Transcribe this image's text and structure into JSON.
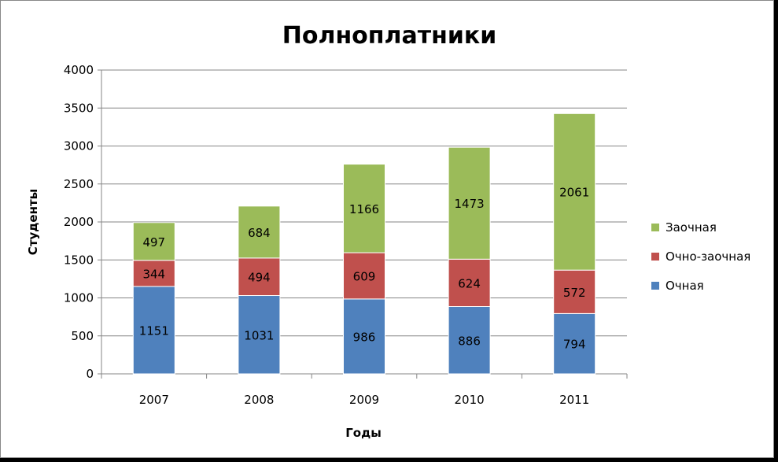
{
  "chart_data": {
    "type": "bar",
    "stacked": true,
    "title": "Полноплатники",
    "xlabel": "Годы",
    "ylabel": "Студенты",
    "categories": [
      "2007",
      "2008",
      "2009",
      "2010",
      "2011"
    ],
    "series": [
      {
        "name": "Очная",
        "color": "#4f81bd",
        "values": [
          1151,
          1031,
          986,
          886,
          794
        ]
      },
      {
        "name": "Очно-заочная",
        "color": "#c0504d",
        "values": [
          344,
          494,
          609,
          624,
          572
        ]
      },
      {
        "name": "Заочная",
        "color": "#9bbb59",
        "values": [
          497,
          684,
          1166,
          1473,
          2061
        ]
      }
    ],
    "ylim": [
      0,
      4000
    ],
    "yticks": [
      "0",
      "500",
      "1000",
      "1500",
      "2000",
      "2500",
      "3000",
      "3500",
      "4000"
    ],
    "grid": true,
    "data_labels": true,
    "legend_position": "right"
  }
}
